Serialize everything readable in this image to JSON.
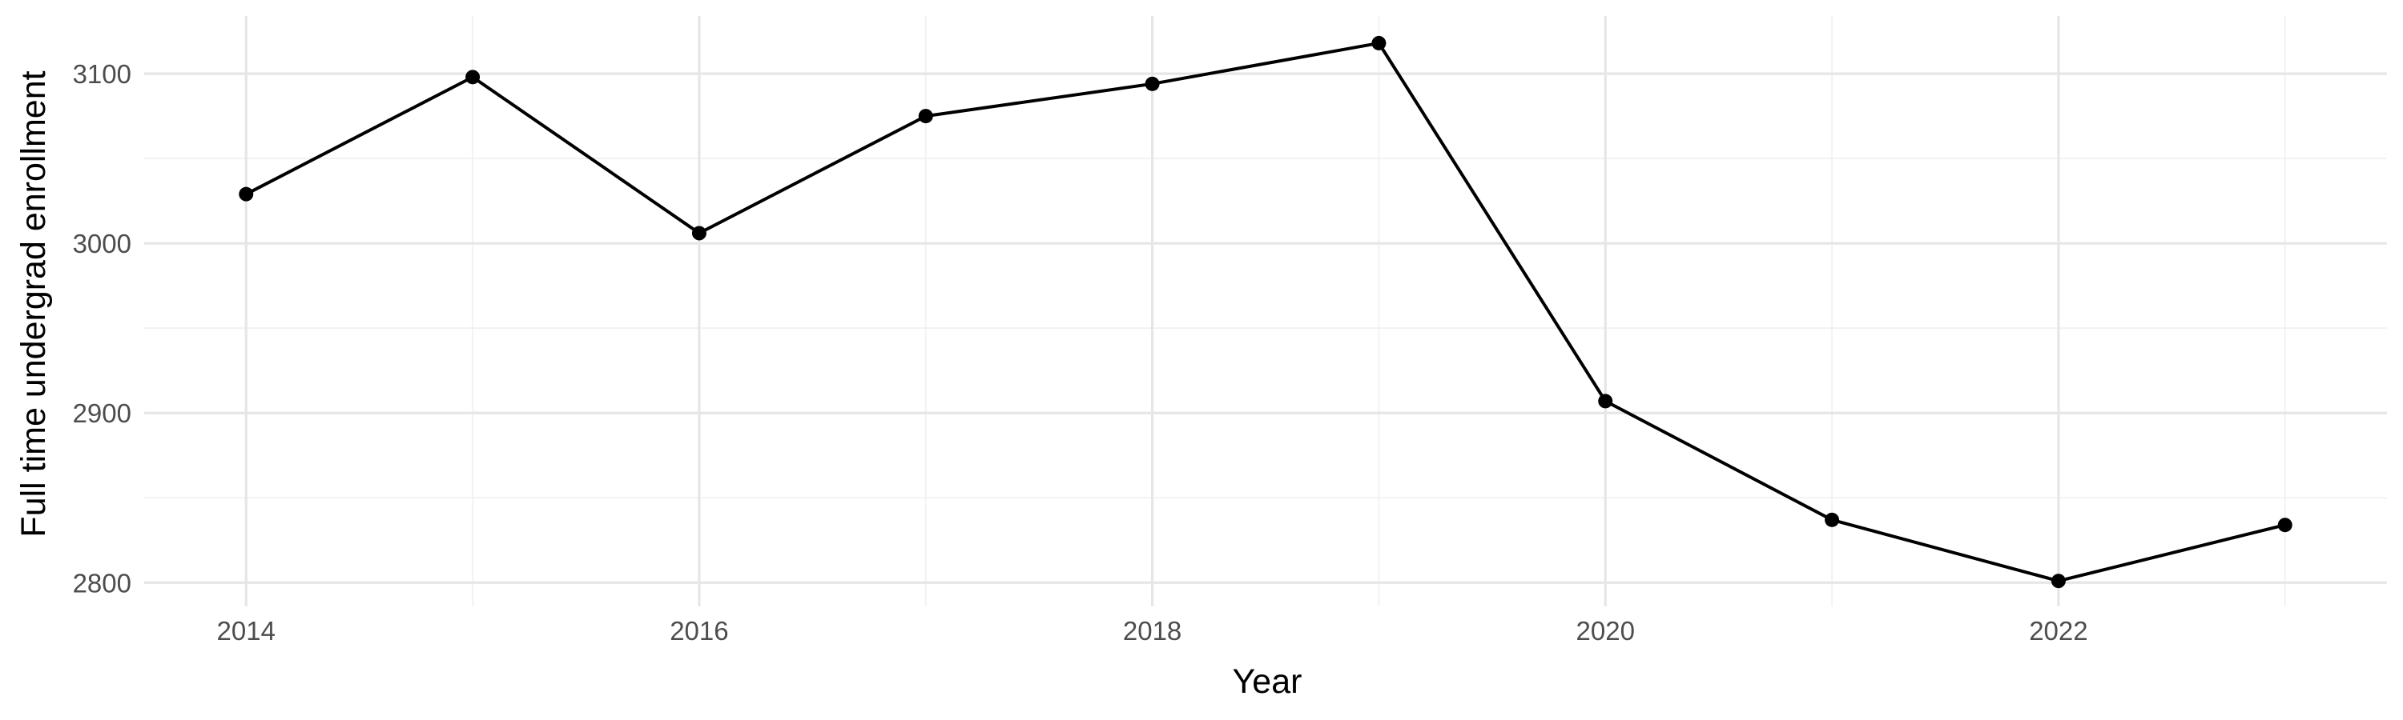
{
  "chart_data": {
    "type": "line",
    "title": "",
    "xlabel": "Year",
    "ylabel": "Full time undergrad enrollment",
    "x": [
      2014,
      2015,
      2016,
      2017,
      2018,
      2019,
      2020,
      2021,
      2022,
      2023
    ],
    "series": [
      {
        "values": [
          3029,
          3098,
          3006,
          3075,
          3094,
          3118,
          2907,
          2837,
          2801,
          2834
        ],
        "color": "#000000"
      }
    ],
    "x_ticks": [
      "2014",
      "2016",
      "2018",
      "2020",
      "2022"
    ],
    "y_ticks": [
      "2800",
      "2900",
      "3000",
      "3100"
    ],
    "xlim": [
      2013.55,
      2023.45
    ],
    "ylim": [
      2786,
      3134
    ],
    "grid": true,
    "legend": "none"
  }
}
